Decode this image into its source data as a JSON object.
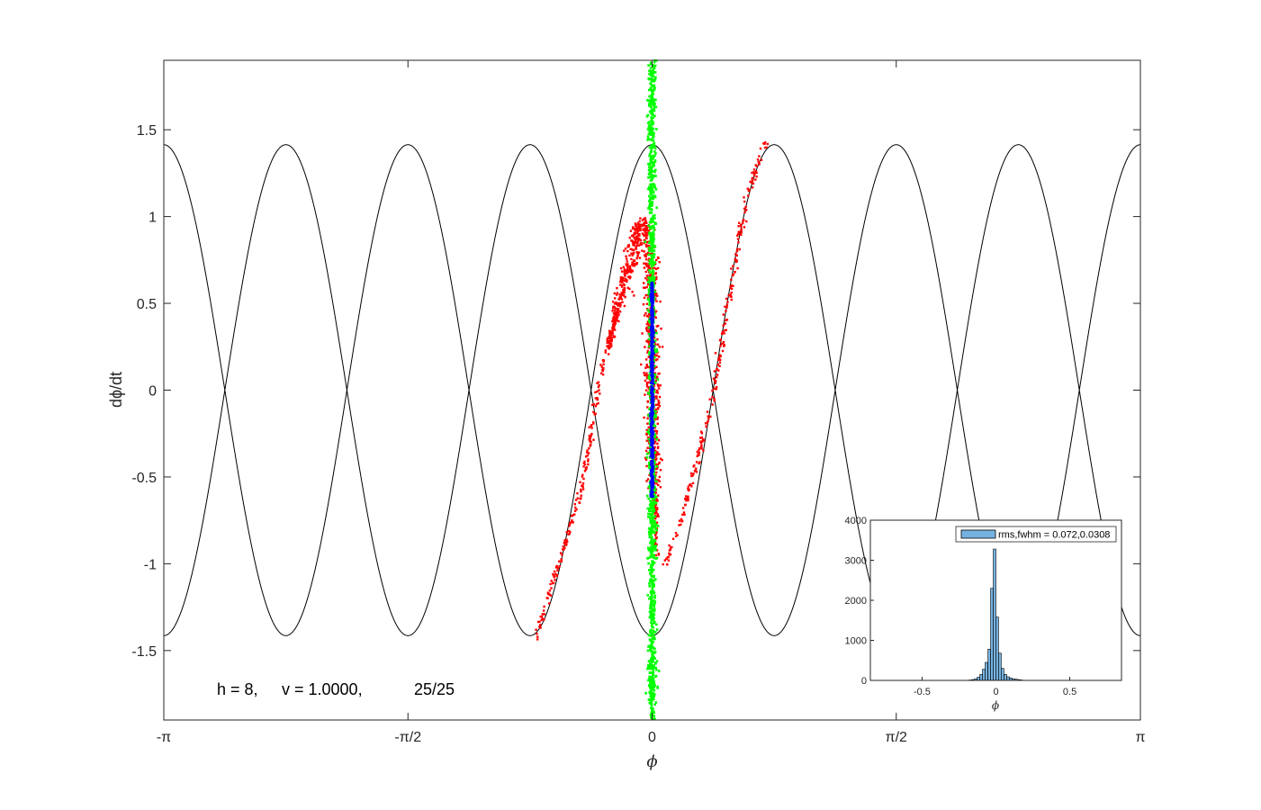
{
  "chart_data": [
    {
      "type": "scatter",
      "title": "",
      "xlabel": "ϕ",
      "ylabel": "dϕ/dt",
      "xlim": [
        -3.14159,
        3.14159
      ],
      "ylim": [
        -1.9,
        1.9
      ],
      "grid": false,
      "x_ticks": [
        -3.14159,
        -1.5708,
        0,
        1.5708,
        3.14159
      ],
      "x_tick_labels": [
        "-π",
        "-π/2",
        "0",
        "π/2",
        "π"
      ],
      "y_ticks": [
        1.5,
        1,
        0.5,
        0,
        -0.5,
        -1,
        -1.5
      ],
      "y_tick_labels": [
        "1.5",
        "1",
        "0.5",
        "0",
        "-0.5",
        "-1",
        "-1.5"
      ],
      "separatrix": {
        "harmonic": 8,
        "amplitude": 1.414,
        "color": "#000000"
      },
      "series": [
        {
          "color": "#ff0000",
          "shape": "s-curve",
          "path": [
            [
              -0.76,
              -1.45
            ],
            [
              -0.62,
              -1.05
            ],
            [
              -0.45,
              -0.55
            ],
            [
              -0.35,
              0.0
            ],
            [
              -0.2,
              0.55
            ],
            [
              -0.07,
              0.97
            ],
            [
              -0.02,
              0.9
            ],
            [
              0.0,
              0.5
            ],
            [
              0.0,
              0.0
            ],
            [
              0.01,
              -0.5
            ],
            [
              0.03,
              -0.95
            ],
            [
              0.09,
              -1.0
            ],
            [
              0.2,
              -0.7
            ],
            [
              0.38,
              -0.1
            ],
            [
              0.5,
              0.55
            ],
            [
              0.6,
              1.1
            ],
            [
              0.73,
              1.43
            ]
          ]
        },
        {
          "color": "#00ff00",
          "shape": "vertical-band",
          "x_center": 0.0,
          "x_spread": 0.012,
          "y_range": [
            -1.9,
            1.9
          ]
        },
        {
          "color": "#0000ff",
          "shape": "vertical-band",
          "x_center": 0.0,
          "x_spread": 0.004,
          "y_range": [
            -0.62,
            0.62
          ]
        }
      ],
      "annotation": {
        "h": "h = 8,",
        "v": "v = 1.0000,",
        "frame": "25/25"
      }
    },
    {
      "type": "bar",
      "subtype": "histogram",
      "xlabel": "ϕ",
      "xlim": [
        -0.85,
        0.85
      ],
      "ylim": [
        0,
        4000
      ],
      "x_ticks": [
        -0.5,
        0,
        0.5
      ],
      "x_tick_labels": [
        "-0.5",
        "0",
        "0.5"
      ],
      "y_ticks": [
        0,
        1000,
        2000,
        3000,
        4000
      ],
      "y_tick_labels": [
        "0",
        "1000",
        "2000",
        "3000",
        "4000"
      ],
      "bar_color": "#76b2e0",
      "legend": {
        "label": "rms,fwhm = 0.072,0.0308",
        "location": "top-right"
      },
      "bin_width": 0.0182,
      "bins": [
        -0.191,
        -0.173,
        -0.155,
        -0.136,
        -0.118,
        -0.1,
        -0.082,
        -0.064,
        -0.045,
        -0.027,
        -0.009,
        0.009,
        0.027,
        0.045,
        0.064,
        0.082,
        0.1,
        0.118,
        0.136,
        0.155,
        0.173
      ],
      "values": [
        5,
        10,
        20,
        40,
        80,
        150,
        280,
        450,
        780,
        2300,
        3280,
        1580,
        680,
        300,
        150,
        90,
        60,
        40,
        30,
        20,
        10
      ]
    }
  ]
}
